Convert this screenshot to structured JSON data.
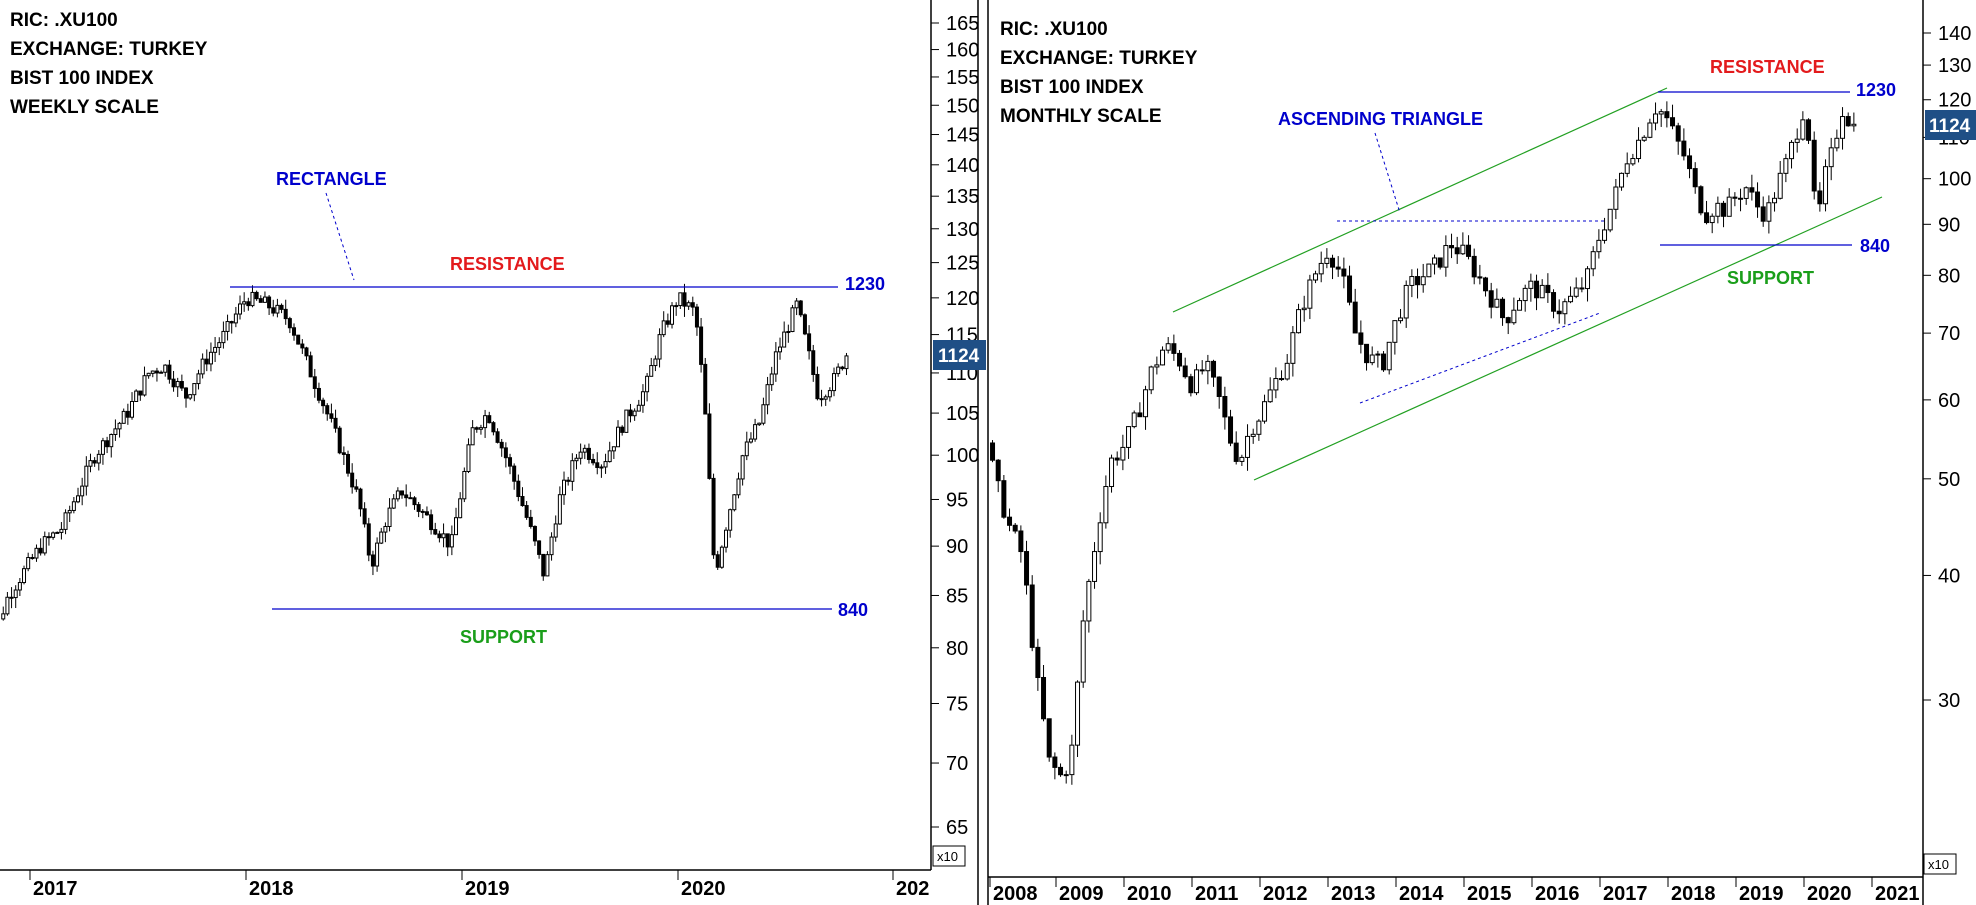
{
  "colors": {
    "resistance_label": "#e31a1c",
    "support_label": "#1a9e1a",
    "pattern_line": "#0000cc",
    "channel_line": "#22a022",
    "price_tag_bg": "#1f4f86",
    "candle": "#000000"
  },
  "chart_data": [
    {
      "type": "candlestick",
      "info_lines": [
        "RIC: .XU100",
        "EXCHANGE: TURKEY",
        "BIST 100 INDEX",
        "WEEKLY SCALE"
      ],
      "x_ticks": [
        "2017",
        "2018",
        "2019",
        "2020",
        "202"
      ],
      "y_ticks": [
        65,
        70,
        75,
        80,
        85,
        90,
        95,
        100,
        105,
        110,
        115,
        120,
        125,
        130,
        135,
        140,
        145,
        150,
        155,
        160,
        165
      ],
      "y_scale": "log",
      "ylim": [
        62,
        168
      ],
      "axis_multiplier": "x10",
      "last_price_tag": "1124",
      "last_value": 112.4,
      "pattern_label": "RECTANGLE",
      "resistance": {
        "label": "RESISTANCE",
        "level": 122.5,
        "level_label": "1230"
      },
      "support": {
        "label": "SUPPORT",
        "level": 84,
        "level_label": "840"
      },
      "series_path": [
        [
          2016.78,
          78
        ],
        [
          2016.9,
          85
        ],
        [
          2017.05,
          90
        ],
        [
          2017.15,
          92
        ],
        [
          2017.3,
          100
        ],
        [
          2017.45,
          105
        ],
        [
          2017.55,
          110
        ],
        [
          2017.62,
          111
        ],
        [
          2017.72,
          107
        ],
        [
          2017.82,
          112
        ],
        [
          2017.9,
          115
        ],
        [
          2018.0,
          120
        ],
        [
          2018.1,
          119
        ],
        [
          2018.2,
          117
        ],
        [
          2018.3,
          110
        ],
        [
          2018.42,
          102
        ],
        [
          2018.52,
          95
        ],
        [
          2018.58,
          88
        ],
        [
          2018.65,
          93
        ],
        [
          2018.72,
          96
        ],
        [
          2018.8,
          94
        ],
        [
          2018.88,
          92
        ],
        [
          2018.95,
          90
        ],
        [
          2019.05,
          103
        ],
        [
          2019.12,
          105
        ],
        [
          2019.2,
          100
        ],
        [
          2019.3,
          93
        ],
        [
          2019.38,
          87
        ],
        [
          2019.45,
          95
        ],
        [
          2019.55,
          101
        ],
        [
          2019.65,
          99
        ],
        [
          2019.75,
          104
        ],
        [
          2019.85,
          108
        ],
        [
          2019.92,
          115
        ],
        [
          2020.0,
          120
        ],
        [
          2020.08,
          118
        ],
        [
          2020.12,
          107
        ],
        [
          2020.17,
          87
        ],
        [
          2020.22,
          92
        ],
        [
          2020.3,
          100
        ],
        [
          2020.38,
          104
        ],
        [
          2020.45,
          112
        ],
        [
          2020.55,
          119
        ],
        [
          2020.6,
          113
        ],
        [
          2020.65,
          107
        ],
        [
          2020.72,
          109
        ],
        [
          2020.78,
          112.4
        ]
      ]
    },
    {
      "type": "candlestick",
      "info_lines": [
        "RIC: .XU100",
        "EXCHANGE: TURKEY",
        "BIST 100 INDEX",
        "MONTHLY SCALE"
      ],
      "x_ticks": [
        "2008",
        "2009",
        "2010",
        "2011",
        "2012",
        "2013",
        "2014",
        "2015",
        "2016",
        "2017",
        "2018",
        "2019",
        "2020",
        "2021"
      ],
      "y_ticks": [
        30,
        40,
        50,
        60,
        70,
        80,
        90,
        100,
        110,
        120,
        130,
        140
      ],
      "y_scale": "log",
      "ylim": [
        22,
        150
      ],
      "axis_multiplier": "x10",
      "last_price_tag": "1124",
      "last_value": 112.4,
      "pattern_label": "ASCENDING TRIANGLE",
      "resistance": {
        "label": "RESISTANCE",
        "level": 122.5,
        "level_label": "1230"
      },
      "support": {
        "label": "SUPPORT",
        "level": 84,
        "level_label": "840"
      },
      "series_path": [
        [
          2007.9,
          58
        ],
        [
          2008.1,
          50
        ],
        [
          2008.3,
          45
        ],
        [
          2008.5,
          42
        ],
        [
          2008.7,
          32
        ],
        [
          2008.9,
          26
        ],
        [
          2009.1,
          25
        ],
        [
          2009.25,
          27
        ],
        [
          2009.4,
          36
        ],
        [
          2009.6,
          44
        ],
        [
          2009.8,
          52
        ],
        [
          2010.0,
          54
        ],
        [
          2010.2,
          58
        ],
        [
          2010.4,
          64
        ],
        [
          2010.6,
          68
        ],
        [
          2010.8,
          66
        ],
        [
          2011.0,
          62
        ],
        [
          2011.2,
          65
        ],
        [
          2011.4,
          60
        ],
        [
          2011.55,
          55
        ],
        [
          2011.7,
          52
        ],
        [
          2011.85,
          56
        ],
        [
          2012.0,
          58
        ],
        [
          2012.2,
          62
        ],
        [
          2012.4,
          66
        ],
        [
          2012.6,
          74
        ],
        [
          2012.8,
          80
        ],
        [
          2013.0,
          85
        ],
        [
          2013.2,
          80
        ],
        [
          2013.4,
          70
        ],
        [
          2013.6,
          66
        ],
        [
          2013.8,
          65
        ],
        [
          2014.0,
          72
        ],
        [
          2014.2,
          78
        ],
        [
          2014.4,
          80
        ],
        [
          2014.6,
          82
        ],
        [
          2014.8,
          86
        ],
        [
          2015.0,
          84
        ],
        [
          2015.2,
          80
        ],
        [
          2015.4,
          76
        ],
        [
          2015.6,
          72
        ],
        [
          2015.8,
          76
        ],
        [
          2016.0,
          78
        ],
        [
          2016.2,
          76
        ],
        [
          2016.4,
          74
        ],
        [
          2016.6,
          76
        ],
        [
          2016.8,
          79
        ],
        [
          2017.0,
          88
        ],
        [
          2017.2,
          95
        ],
        [
          2017.4,
          105
        ],
        [
          2017.6,
          110
        ],
        [
          2017.8,
          118
        ],
        [
          2017.95,
          116
        ],
        [
          2018.1,
          110
        ],
        [
          2018.25,
          105
        ],
        [
          2018.4,
          97
        ],
        [
          2018.55,
          92
        ],
        [
          2018.7,
          94
        ],
        [
          2018.85,
          93
        ],
        [
          2019.0,
          96
        ],
        [
          2019.15,
          98
        ],
        [
          2019.3,
          94
        ],
        [
          2019.45,
          92
        ],
        [
          2019.6,
          98
        ],
        [
          2019.75,
          104
        ],
        [
          2019.9,
          112
        ],
        [
          2020.0,
          118
        ],
        [
          2020.1,
          107
        ],
        [
          2020.18,
          88
        ],
        [
          2020.3,
          100
        ],
        [
          2020.45,
          108
        ],
        [
          2020.55,
          118
        ],
        [
          2020.65,
          115
        ],
        [
          2020.75,
          112.4
        ]
      ]
    }
  ]
}
